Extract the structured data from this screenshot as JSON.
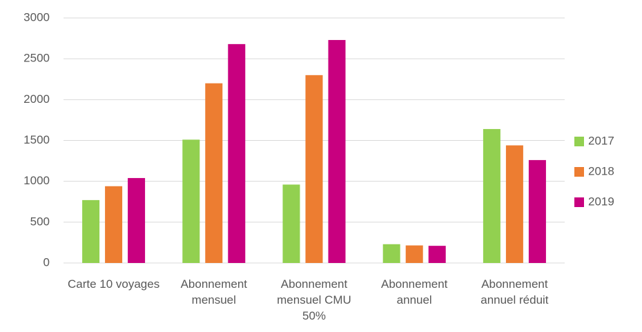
{
  "chart_data": {
    "type": "bar",
    "categories": [
      "Carte 10 voyages",
      "Abonnement mensuel",
      "Abonnement mensuel CMU 50%",
      "Abonnement annuel",
      "Abonnement annuel réduit"
    ],
    "series": [
      {
        "name": "2017",
        "color": "#92d050",
        "values": [
          770,
          1510,
          960,
          230,
          1640
        ]
      },
      {
        "name": "2018",
        "color": "#ed7d31",
        "values": [
          940,
          2200,
          2300,
          215,
          1440
        ]
      },
      {
        "name": "2019",
        "color": "#c8007f",
        "values": [
          1040,
          2680,
          2730,
          210,
          1260
        ]
      }
    ],
    "ylim": [
      0,
      3000
    ],
    "yticks": [
      0,
      500,
      1000,
      1500,
      2000,
      2500,
      3000
    ],
    "grid": true,
    "legend": "right"
  }
}
